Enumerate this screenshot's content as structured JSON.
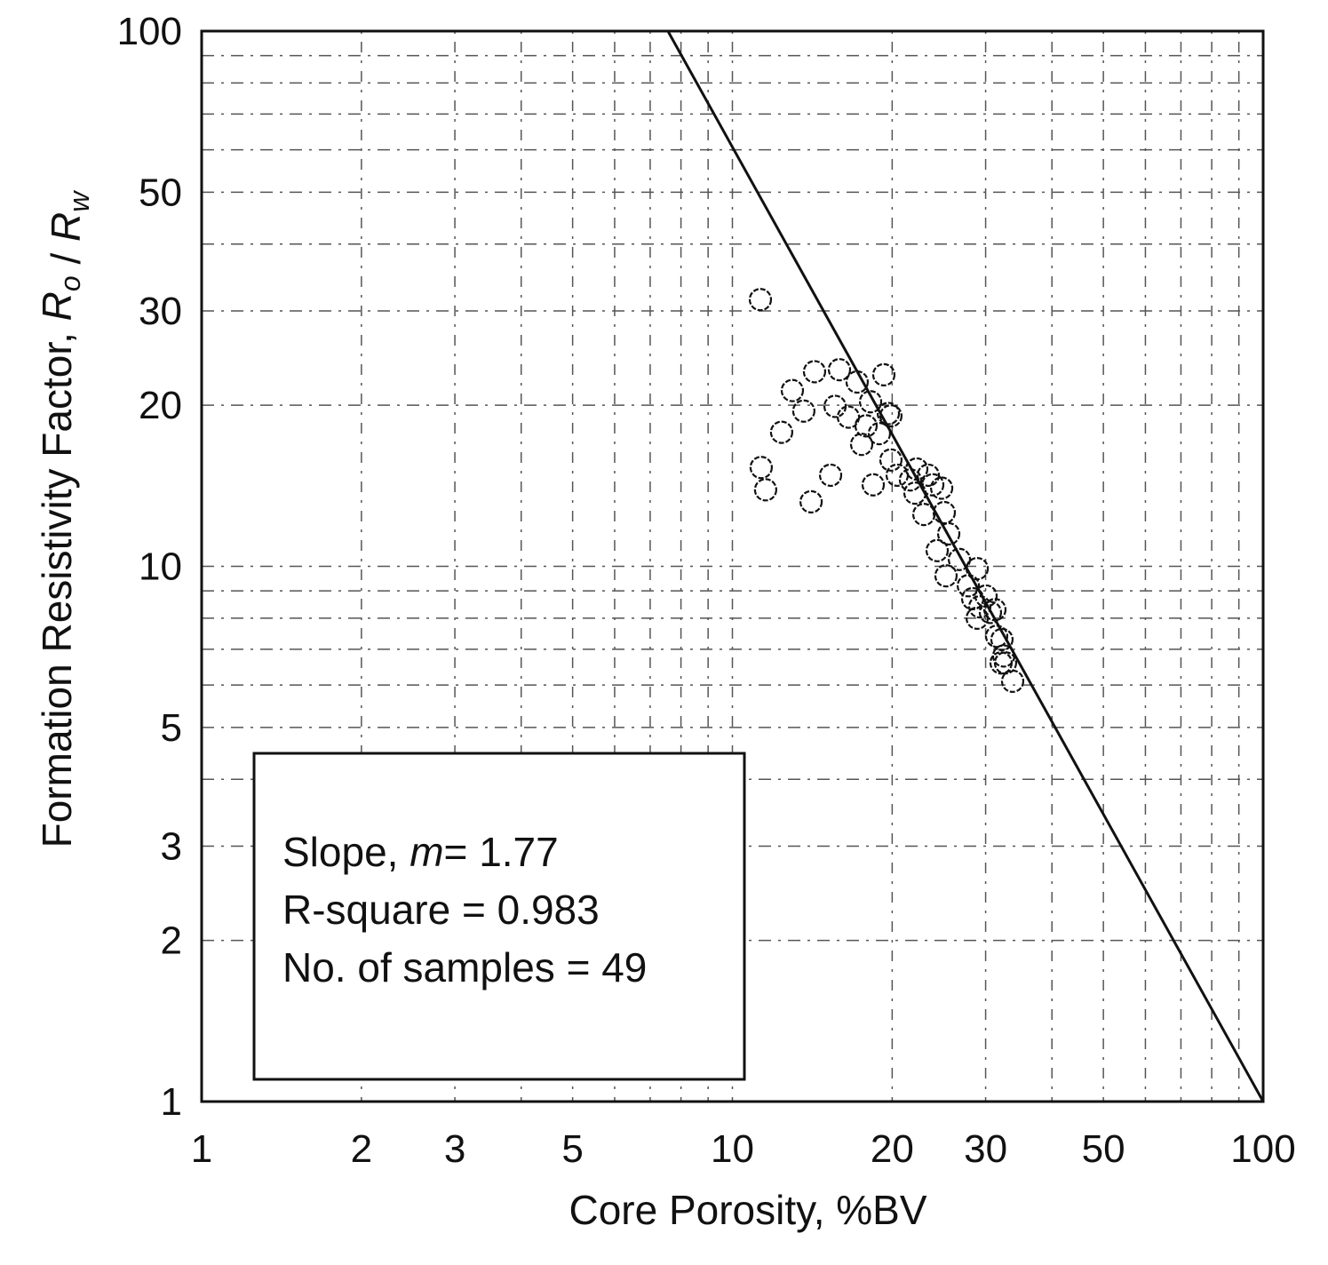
{
  "chart_data": {
    "type": "scatter",
    "title": "",
    "xlabel": "Core Porosity, %BV",
    "ylabel_parts": [
      {
        "text": "Formation Resistivity Factor, "
      },
      {
        "italic": "R",
        "sub": "o"
      },
      {
        "text": " / "
      },
      {
        "italic": "R",
        "sub": "w"
      }
    ],
    "xscale": "log",
    "yscale": "log",
    "xlim": [
      1,
      100
    ],
    "ylim": [
      1,
      100
    ],
    "xticks": [
      1,
      2,
      3,
      5,
      10,
      20,
      30,
      50,
      100
    ],
    "xtick_labels": [
      "1",
      "2",
      "3",
      "5",
      "10",
      "20",
      "30",
      "50",
      "100"
    ],
    "yticks": [
      1,
      2,
      3,
      5,
      10,
      20,
      30,
      50,
      100
    ],
    "ytick_labels": [
      "1",
      "2",
      "3",
      "5",
      "10",
      "20",
      "30",
      "50",
      "100"
    ],
    "grid": true,
    "marker": "open-circle",
    "color": "#111111",
    "points": [
      [
        11.29,
        31.5
      ],
      [
        14.28,
        23.1
      ],
      [
        15.91,
        23.3
      ],
      [
        12.97,
        21.3
      ],
      [
        13.63,
        19.5
      ],
      [
        12.38,
        17.8
      ],
      [
        11.33,
        15.3
      ],
      [
        11.55,
        13.9
      ],
      [
        14.07,
        13.2
      ],
      [
        15.31,
        14.8
      ],
      [
        15.61,
        19.9
      ],
      [
        17.18,
        22.1
      ],
      [
        19.29,
        22.8
      ],
      [
        16.54,
        19.0
      ],
      [
        17.86,
        18.3
      ],
      [
        18.21,
        20.3
      ],
      [
        17.52,
        16.9
      ],
      [
        18.92,
        17.7
      ],
      [
        19.67,
        19.3
      ],
      [
        19.89,
        19.1
      ],
      [
        19.89,
        15.8
      ],
      [
        18.42,
        14.2
      ],
      [
        20.44,
        14.8
      ],
      [
        21.65,
        14.5
      ],
      [
        22.25,
        15.2
      ],
      [
        23.39,
        14.8
      ],
      [
        23.85,
        14.2
      ],
      [
        24.79,
        14.0
      ],
      [
        22.08,
        13.7
      ],
      [
        22.95,
        12.5
      ],
      [
        25.07,
        12.6
      ],
      [
        25.56,
        11.5
      ],
      [
        24.31,
        10.7
      ],
      [
        26.77,
        10.3
      ],
      [
        25.26,
        9.6
      ],
      [
        28.92,
        9.9
      ],
      [
        27.83,
        9.2
      ],
      [
        28.36,
        8.7
      ],
      [
        29.25,
        8.4
      ],
      [
        30.05,
        8.8
      ],
      [
        30.63,
        8.2
      ],
      [
        31.23,
        8.3
      ],
      [
        28.92,
        8.0
      ],
      [
        31.47,
        7.4
      ],
      [
        32.2,
        7.3
      ],
      [
        32.45,
        6.8
      ],
      [
        32.7,
        6.6
      ],
      [
        33.73,
        6.1
      ],
      [
        32.08,
        6.6
      ]
    ],
    "fit_line": {
      "x": [
        7.56,
        100
      ],
      "y": [
        100,
        1
      ]
    },
    "annotation": {
      "slope_label": "Slope, ",
      "slope_symbol": "m",
      "slope_value": "= 1.77",
      "r_square": "R-square = 0.983",
      "samples": "No. of samples = 49"
    }
  }
}
